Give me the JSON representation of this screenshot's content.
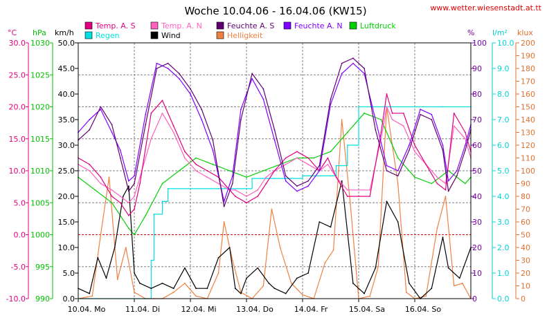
{
  "chart_data": {
    "type": "line",
    "title": "Woche 10.04.06 - 16.04.06 (KW15)",
    "source": "www.wetter.wiesenstadt.at.tt",
    "axis_titles": {
      "temp": "°C",
      "pressure": "hPa",
      "wind": "km/h",
      "humidity": "%",
      "rain": "l/m²",
      "light": "klux"
    },
    "axes": {
      "temp": {
        "ticks": [
          "30.0",
          "25.0",
          "20.0",
          "15.0",
          "10.0",
          "5.0",
          "0.0",
          "-5.0",
          "-10.0"
        ],
        "range": [
          -10,
          30
        ],
        "color": "#e0007f"
      },
      "pressure": {
        "ticks": [
          "1030",
          "1025",
          "1020",
          "1015",
          "1010",
          "1005",
          "1000",
          "995",
          "990"
        ],
        "range": [
          990,
          1030
        ],
        "color": "#00c000"
      },
      "wind": {
        "ticks": [
          "50.0",
          "45.0",
          "40.0",
          "35.0",
          "30.0",
          "25.0",
          "20.0",
          "15.0",
          "10.0",
          "5.0",
          "0.0"
        ],
        "range": [
          0,
          50
        ],
        "color": "#000000"
      },
      "humidity": {
        "ticks": [
          "100",
          "90",
          "80",
          "70",
          "60",
          "50",
          "40",
          "30",
          "20",
          "10",
          "0"
        ],
        "range": [
          0,
          100
        ],
        "color": "#7000a0"
      },
      "rain": {
        "ticks": [
          "10.0",
          "9.0",
          "8.0",
          "7.0",
          "6.0",
          "5.0",
          "4.0",
          "3.0",
          "2.0",
          "1.0",
          "0.0"
        ],
        "range": [
          0,
          10
        ],
        "color": "#00d8d8"
      },
      "light": {
        "ticks": [
          "200",
          "190",
          "180",
          "170",
          "160",
          "150",
          "140",
          "130",
          "120",
          "110",
          "100",
          "90",
          "80",
          "70",
          "60",
          "50",
          "40",
          "30",
          "20",
          "10",
          "0"
        ],
        "range": [
          0,
          200
        ],
        "color": "#e07030"
      }
    },
    "x_ticks": [
      "10.04. Mo",
      "11.04. Di",
      "12.04. Mi",
      "13.04. Do",
      "14.04. Fr",
      "15.04. Sa",
      "16.04. So"
    ],
    "legend": [
      {
        "name": "Temp. A. S",
        "color": "#e0007f"
      },
      {
        "name": "Temp. A. N",
        "color": "#ff60c0"
      },
      {
        "name": "Feuchte A. S",
        "color": "#600070"
      },
      {
        "name": "Feuchte A. N",
        "color": "#8000ff"
      },
      {
        "name": "Luftdruck",
        "color": "#00d000"
      },
      {
        "name": "Regen",
        "color": "#00e0e0"
      },
      {
        "name": "Wind",
        "color": "#000000"
      },
      {
        "name": "Helligkeit",
        "color": "#f08040"
      }
    ],
    "grid": true,
    "frost_line": 0,
    "series": [
      {
        "name": "Temp. A. S",
        "axis": "temp",
        "color": "#e0007f",
        "x": [
          0,
          0.2,
          0.4,
          0.6,
          0.75,
          0.9,
          1.0,
          1.1,
          1.3,
          1.5,
          1.7,
          1.9,
          2.1,
          2.3,
          2.5,
          2.7,
          2.8,
          3.0,
          3.2,
          3.35,
          3.5,
          3.7,
          3.9,
          4.1,
          4.3,
          4.45,
          4.6,
          4.8,
          5.0,
          5.2,
          5.4,
          5.5,
          5.6,
          5.8,
          6.0,
          6.2,
          6.4,
          6.55,
          6.7,
          6.9,
          7.0
        ],
        "y": [
          12,
          11,
          9,
          6,
          5,
          3,
          4,
          8,
          19,
          21,
          17,
          13,
          11,
          10,
          9,
          7,
          6,
          5,
          6,
          8,
          10,
          12,
          13,
          12,
          10,
          12,
          9,
          6,
          6,
          6,
          16,
          22,
          19,
          19,
          14,
          11,
          8,
          7,
          19,
          16,
          13
        ]
      },
      {
        "name": "Temp. A. N",
        "axis": "temp",
        "color": "#ff60c0",
        "x": [
          0,
          0.2,
          0.4,
          0.6,
          0.75,
          0.9,
          1.0,
          1.1,
          1.3,
          1.5,
          1.7,
          1.9,
          2.1,
          2.3,
          2.5,
          2.7,
          2.8,
          3.0,
          3.2,
          3.35,
          3.5,
          3.7,
          3.9,
          4.1,
          4.3,
          4.45,
          4.6,
          4.8,
          5.0,
          5.2,
          5.4,
          5.5,
          5.6,
          5.8,
          6.0,
          6.2,
          6.4,
          6.55,
          6.7,
          6.9,
          7.0
        ],
        "y": [
          11,
          10,
          8,
          7,
          6,
          5,
          6,
          9,
          15,
          19,
          16,
          12,
          10,
          9,
          8,
          7,
          7,
          6,
          7,
          9,
          10,
          11,
          12,
          11,
          10,
          11,
          9,
          7,
          7,
          7,
          15,
          20,
          18,
          17,
          13,
          11,
          9,
          8,
          17,
          15,
          12
        ]
      },
      {
        "name": "Feuchte A. S",
        "axis": "humidity",
        "color": "#600070",
        "x": [
          0,
          0.2,
          0.4,
          0.6,
          0.75,
          0.9,
          1.0,
          1.2,
          1.4,
          1.6,
          1.8,
          2.0,
          2.2,
          2.4,
          2.6,
          2.75,
          2.9,
          3.1,
          3.3,
          3.5,
          3.7,
          3.9,
          4.1,
          4.3,
          4.5,
          4.7,
          4.9,
          5.1,
          5.3,
          5.5,
          5.7,
          5.9,
          6.1,
          6.3,
          6.5,
          6.6,
          6.75,
          6.9,
          7.0
        ],
        "y": [
          62,
          66,
          75,
          68,
          55,
          42,
          45,
          68,
          90,
          92,
          88,
          82,
          74,
          62,
          36,
          45,
          70,
          88,
          82,
          66,
          48,
          44,
          46,
          52,
          78,
          92,
          94,
          90,
          66,
          50,
          48,
          58,
          72,
          70,
          58,
          42,
          48,
          58,
          66
        ]
      },
      {
        "name": "Feuchte A. N",
        "axis": "humidity",
        "color": "#8000ff",
        "x": [
          0,
          0.2,
          0.4,
          0.6,
          0.75,
          0.9,
          1.0,
          1.2,
          1.4,
          1.6,
          1.8,
          2.0,
          2.2,
          2.4,
          2.6,
          2.75,
          2.9,
          3.1,
          3.3,
          3.5,
          3.7,
          3.9,
          4.1,
          4.3,
          4.5,
          4.7,
          4.9,
          5.1,
          5.3,
          5.5,
          5.7,
          5.9,
          6.1,
          6.3,
          6.5,
          6.6,
          6.75,
          6.9,
          7.0
        ],
        "y": [
          65,
          70,
          74,
          65,
          58,
          46,
          48,
          72,
          92,
          90,
          86,
          80,
          70,
          58,
          38,
          48,
          74,
          86,
          78,
          62,
          46,
          42,
          44,
          50,
          76,
          88,
          92,
          88,
          70,
          52,
          50,
          60,
          74,
          72,
          60,
          46,
          50,
          60,
          68
        ]
      },
      {
        "name": "Luftdruck",
        "axis": "pressure",
        "color": "#00d000",
        "x": [
          0,
          0.3,
          0.6,
          0.9,
          1.0,
          1.2,
          1.5,
          1.8,
          2.1,
          2.4,
          2.7,
          3.0,
          3.3,
          3.6,
          3.9,
          4.2,
          4.5,
          4.8,
          5.1,
          5.4,
          5.7,
          6.0,
          6.3,
          6.6,
          6.9,
          7.0
        ],
        "y": [
          1009,
          1007,
          1005,
          1001,
          1000,
          1003,
          1008,
          1010,
          1012,
          1011,
          1010,
          1009,
          1010,
          1011,
          1012,
          1012,
          1013,
          1016,
          1019,
          1018,
          1012,
          1009,
          1008,
          1010,
          1008,
          1009
        ]
      },
      {
        "name": "Regen",
        "axis": "rain",
        "color": "#00e0e0",
        "x": [
          0,
          1.2,
          1.3,
          1.35,
          1.5,
          1.6,
          2.0,
          2.5,
          3.0,
          3.1,
          3.5,
          4.0,
          4.5,
          4.6,
          4.8,
          5.0,
          5.5,
          6.0,
          6.5,
          7.0
        ],
        "y": [
          0,
          0,
          1.5,
          3.3,
          3.8,
          4.3,
          4.3,
          4.3,
          4.3,
          4.7,
          4.7,
          4.8,
          4.8,
          5.2,
          6.0,
          7.5,
          7.5,
          7.5,
          7.5,
          7.5
        ]
      },
      {
        "name": "Wind",
        "axis": "wind",
        "color": "#000000",
        "x": [
          0,
          0.2,
          0.35,
          0.5,
          0.65,
          0.8,
          0.9,
          1.0,
          1.1,
          1.3,
          1.5,
          1.7,
          1.9,
          2.1,
          2.3,
          2.5,
          2.7,
          2.8,
          2.9,
          3.0,
          3.2,
          3.4,
          3.5,
          3.7,
          3.9,
          4.1,
          4.3,
          4.5,
          4.7,
          4.9,
          5.1,
          5.3,
          5.5,
          5.7,
          5.9,
          6.1,
          6.3,
          6.5,
          6.6,
          6.8,
          7.0
        ],
        "y": [
          2,
          1,
          8,
          4,
          10,
          20,
          22,
          5,
          3,
          2,
          3,
          2,
          6,
          2,
          2,
          8,
          10,
          2,
          1,
          4,
          6,
          3,
          2,
          1,
          4,
          5,
          15,
          14,
          23,
          3,
          1,
          6,
          19,
          15,
          3,
          0,
          2,
          12,
          6,
          4,
          10
        ]
      },
      {
        "name": "Helligkeit",
        "axis": "light",
        "color": "#f08040",
        "x": [
          0,
          0.25,
          0.4,
          0.55,
          0.7,
          0.85,
          1.0,
          1.2,
          1.35,
          1.5,
          1.7,
          1.9,
          2.1,
          2.3,
          2.5,
          2.6,
          2.75,
          2.9,
          3.1,
          3.3,
          3.45,
          3.6,
          3.8,
          4.0,
          4.2,
          4.4,
          4.55,
          4.7,
          4.85,
          5.0,
          5.2,
          5.35,
          5.5,
          5.7,
          5.85,
          6.0,
          6.2,
          6.4,
          6.55,
          6.7,
          6.85,
          7.0
        ],
        "y": [
          0,
          2,
          50,
          95,
          15,
          40,
          5,
          0,
          0,
          0,
          5,
          12,
          2,
          0,
          20,
          60,
          30,
          5,
          0,
          10,
          70,
          40,
          12,
          3,
          0,
          28,
          38,
          140,
          75,
          0,
          2,
          25,
          150,
          90,
          5,
          0,
          2,
          55,
          80,
          10,
          12,
          0
        ]
      }
    ]
  }
}
